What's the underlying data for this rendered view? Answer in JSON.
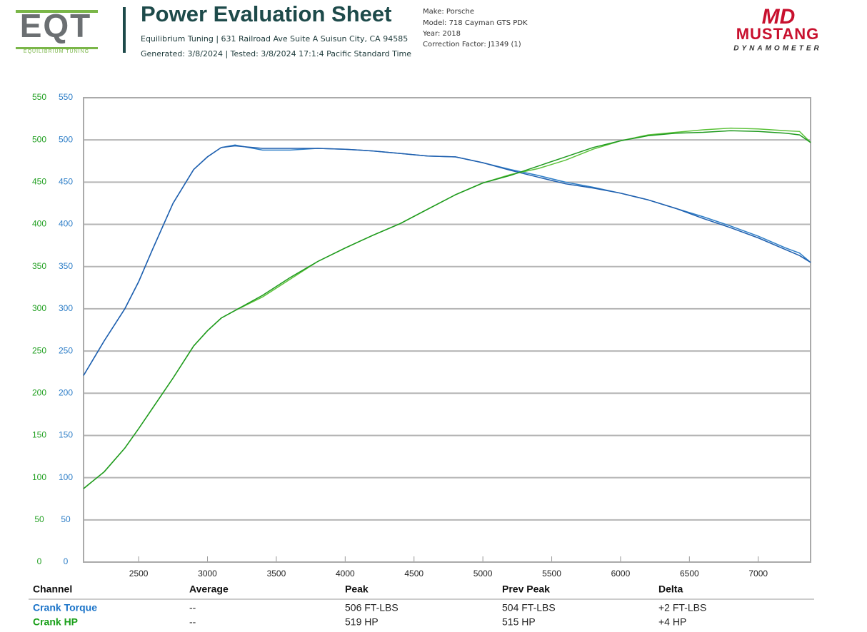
{
  "header": {
    "logo_left": {
      "mark": "EQT",
      "subtitle": "EQUILIBRIUM TUNING"
    },
    "title": "Power Evaluation Sheet",
    "address": "Equilibrium Tuning | 631 Railroad Ave Suite A Suisun City, CA 94585",
    "generated": "Generated: 3/8/2024 | Tested: 3/8/2024 17:1:4 Pacific Standard Time",
    "vehicle": [
      "Make: Porsche",
      "Model: 718 Cayman GTS PDK",
      "Year: 2018",
      "Correction Factor: J1349 (1)"
    ],
    "logo_right": {
      "mark": "MD",
      "name": "MUSTANG",
      "subtitle": "DYNAMOMETER"
    }
  },
  "chart_data": {
    "type": "line",
    "x": [
      2100,
      2250,
      2400,
      2500,
      2600,
      2750,
      2900,
      3000,
      3100,
      3200,
      3400,
      3600,
      3800,
      4000,
      4200,
      4400,
      4600,
      4800,
      5000,
      5200,
      5400,
      5600,
      5800,
      6000,
      6200,
      6400,
      6600,
      6800,
      7000,
      7200,
      7300,
      7380
    ],
    "series": [
      {
        "color": "#2f7fc8",
        "axis": "y2",
        "values": [
          221,
          262,
          300,
          332,
          370,
          425,
          465,
          480,
          491,
          494,
          488,
          488,
          490,
          489,
          487,
          484,
          481,
          480,
          473,
          465,
          458,
          450,
          444,
          437,
          429,
          419,
          409,
          398,
          386,
          372,
          366,
          355
        ]
      },
      {
        "color": "#1f5fae",
        "axis": "y2",
        "values": [
          221,
          262,
          300,
          332,
          370,
          425,
          465,
          480,
          491,
          493,
          490,
          490,
          490,
          489,
          487,
          484,
          481,
          480,
          473,
          464,
          456,
          448,
          443,
          437,
          429,
          419,
          407,
          396,
          384,
          370,
          363,
          355
        ]
      },
      {
        "color": "#5cc23a",
        "values": [
          87,
          107,
          135,
          158,
          182,
          218,
          256,
          274,
          289,
          298,
          314,
          335,
          356,
          372,
          387,
          401,
          418,
          435,
          449,
          459,
          466,
          476,
          489,
          499,
          506,
          509,
          512,
          514,
          513,
          511,
          510,
          497
        ]
      },
      {
        "color": "#1f9a1f",
        "values": [
          87,
          107,
          135,
          158,
          182,
          218,
          256,
          274,
          289,
          298,
          316,
          337,
          356,
          372,
          387,
          401,
          418,
          435,
          449,
          458,
          469,
          480,
          491,
          499,
          505,
          508,
          509,
          511,
          510,
          508,
          506,
          497
        ]
      }
    ],
    "xlim": [
      2100,
      7380
    ],
    "xticks": [
      2500,
      3000,
      3500,
      4000,
      4500,
      5000,
      5500,
      6000,
      6500,
      7000
    ],
    "ylim": [
      0,
      550
    ],
    "yticks": [
      0,
      50,
      100,
      150,
      200,
      250,
      300,
      350,
      400,
      450,
      500,
      550
    ],
    "y2lim": [
      0,
      550
    ],
    "y2ticks": [
      0,
      50,
      100,
      150,
      200,
      250,
      300,
      350,
      400,
      450,
      500,
      550
    ],
    "grid": true
  },
  "table": {
    "header": [
      "Channel",
      "Average",
      "Peak",
      "Prev Peak",
      "Delta"
    ],
    "rows": [
      [
        "Crank Torque",
        "--",
        "506 FT-LBS",
        "504 FT-LBS",
        "+2 FT-LBS"
      ],
      [
        "Crank HP",
        "--",
        "519 HP",
        "515 HP",
        "+4 HP"
      ]
    ]
  }
}
